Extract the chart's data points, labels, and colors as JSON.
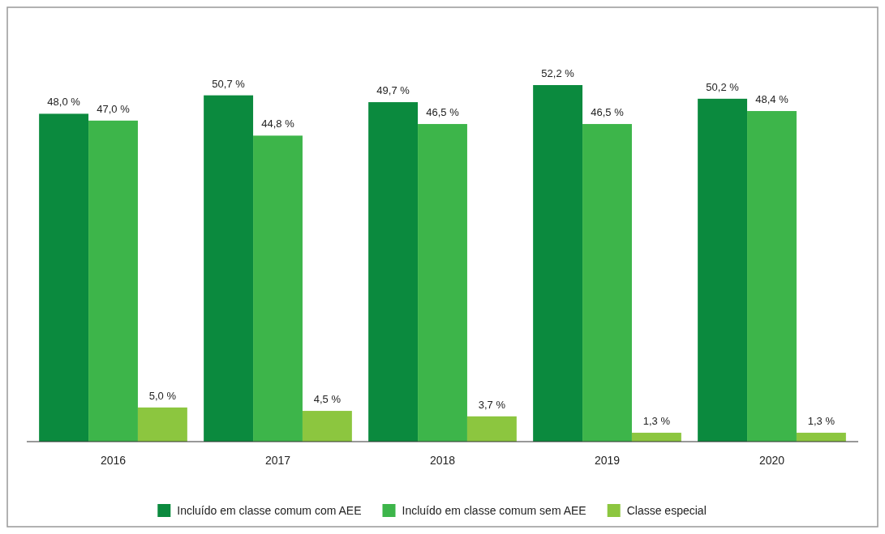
{
  "chart_data": {
    "type": "bar",
    "categories": [
      "2016",
      "2017",
      "2018",
      "2019",
      "2020"
    ],
    "series": [
      {
        "name": "Incluído em classe comum com AEE",
        "color": "#0b8a3e",
        "values": [
          48.0,
          50.7,
          49.7,
          52.2,
          50.2
        ],
        "value_labels": [
          "48,0 %",
          "50,7 %",
          "49,7 %",
          "52,2 %",
          "50,2 %"
        ]
      },
      {
        "name": "Incluído em classe comum sem AEE",
        "color": "#3db54a",
        "values": [
          47.0,
          44.8,
          46.5,
          46.5,
          48.4
        ],
        "value_labels": [
          "47,0 %",
          "44,8 %",
          "46,5 %",
          "46,5 %",
          "48,4 %"
        ]
      },
      {
        "name": "Classe especial",
        "color": "#8cc63f",
        "values": [
          5.0,
          4.5,
          3.7,
          1.3,
          1.3
        ],
        "value_labels": [
          "5,0 %",
          "4,5 %",
          "3,7 %",
          "1,3 %",
          "1,3 %"
        ]
      }
    ],
    "legend": "bottom",
    "grid": false
  }
}
